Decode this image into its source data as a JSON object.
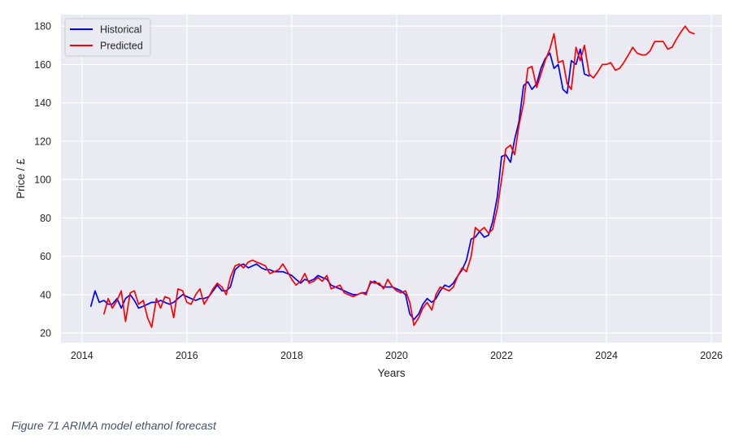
{
  "caption": "Figure 71 ARIMA model ethanol forecast",
  "chart_data": {
    "type": "line",
    "title": "",
    "xlabel": "Years",
    "ylabel": "Price / £",
    "xlim": [
      2013.6,
      2026.2
    ],
    "ylim": [
      15,
      186
    ],
    "x_ticks": [
      2014,
      2016,
      2018,
      2020,
      2022,
      2024,
      2026
    ],
    "y_ticks": [
      20,
      40,
      60,
      80,
      100,
      120,
      140,
      160,
      180
    ],
    "grid": true,
    "legend_position": "top-left",
    "background_color": "#eaeaf2",
    "series": [
      {
        "name": "Historical",
        "color": "#0000ff",
        "points": [
          [
            2014.17,
            34
          ],
          [
            2014.25,
            42
          ],
          [
            2014.33,
            36
          ],
          [
            2014.42,
            37
          ],
          [
            2014.5,
            35
          ],
          [
            2014.58,
            35
          ],
          [
            2014.67,
            38
          ],
          [
            2014.75,
            33
          ],
          [
            2014.83,
            38
          ],
          [
            2014.92,
            40
          ],
          [
            2015.0,
            37
          ],
          [
            2015.08,
            33
          ],
          [
            2015.17,
            34
          ],
          [
            2015.25,
            35
          ],
          [
            2015.33,
            36
          ],
          [
            2015.42,
            36
          ],
          [
            2015.5,
            37
          ],
          [
            2015.58,
            36
          ],
          [
            2015.67,
            35
          ],
          [
            2015.75,
            36
          ],
          [
            2015.83,
            38
          ],
          [
            2015.92,
            40
          ],
          [
            2016.0,
            39
          ],
          [
            2016.08,
            38
          ],
          [
            2016.17,
            37
          ],
          [
            2016.25,
            38
          ],
          [
            2016.33,
            38
          ],
          [
            2016.42,
            39
          ],
          [
            2016.5,
            42
          ],
          [
            2016.58,
            45
          ],
          [
            2016.67,
            42
          ],
          [
            2016.75,
            42
          ],
          [
            2016.83,
            44
          ],
          [
            2016.92,
            53
          ],
          [
            2017.0,
            55
          ],
          [
            2017.08,
            56
          ],
          [
            2017.17,
            54
          ],
          [
            2017.25,
            55
          ],
          [
            2017.33,
            56
          ],
          [
            2017.42,
            54
          ],
          [
            2017.5,
            53
          ],
          [
            2017.58,
            53
          ],
          [
            2017.67,
            52
          ],
          [
            2017.75,
            52
          ],
          [
            2017.83,
            52
          ],
          [
            2017.92,
            51
          ],
          [
            2018.0,
            50
          ],
          [
            2018.08,
            48
          ],
          [
            2018.17,
            46
          ],
          [
            2018.25,
            48
          ],
          [
            2018.33,
            47
          ],
          [
            2018.42,
            48
          ],
          [
            2018.5,
            50
          ],
          [
            2018.58,
            49
          ],
          [
            2018.67,
            48
          ],
          [
            2018.75,
            45
          ],
          [
            2018.83,
            44
          ],
          [
            2018.92,
            43
          ],
          [
            2019.0,
            42
          ],
          [
            2019.08,
            41
          ],
          [
            2019.17,
            40
          ],
          [
            2019.25,
            40
          ],
          [
            2019.33,
            41
          ],
          [
            2019.42,
            41
          ],
          [
            2019.5,
            46
          ],
          [
            2019.58,
            47
          ],
          [
            2019.67,
            45
          ],
          [
            2019.75,
            44
          ],
          [
            2019.83,
            44
          ],
          [
            2019.92,
            44
          ],
          [
            2020.0,
            43
          ],
          [
            2020.08,
            42
          ],
          [
            2020.17,
            40
          ],
          [
            2020.25,
            30
          ],
          [
            2020.33,
            27
          ],
          [
            2020.42,
            30
          ],
          [
            2020.5,
            35
          ],
          [
            2020.58,
            38
          ],
          [
            2020.67,
            36
          ],
          [
            2020.75,
            38
          ],
          [
            2020.83,
            42
          ],
          [
            2020.92,
            45
          ],
          [
            2021.0,
            44
          ],
          [
            2021.08,
            46
          ],
          [
            2021.17,
            50
          ],
          [
            2021.25,
            53
          ],
          [
            2021.33,
            58
          ],
          [
            2021.42,
            69
          ],
          [
            2021.5,
            70
          ],
          [
            2021.58,
            73
          ],
          [
            2021.67,
            70
          ],
          [
            2021.75,
            71
          ],
          [
            2021.83,
            78
          ],
          [
            2021.92,
            91
          ],
          [
            2022.0,
            112
          ],
          [
            2022.08,
            113
          ],
          [
            2022.17,
            109
          ],
          [
            2022.25,
            121
          ],
          [
            2022.33,
            130
          ],
          [
            2022.42,
            149
          ],
          [
            2022.5,
            151
          ],
          [
            2022.58,
            147
          ],
          [
            2022.67,
            150
          ],
          [
            2022.75,
            158
          ],
          [
            2022.83,
            163
          ],
          [
            2022.92,
            166
          ],
          [
            2023.0,
            158
          ],
          [
            2023.08,
            160
          ],
          [
            2023.17,
            147
          ],
          [
            2023.25,
            145
          ],
          [
            2023.33,
            162
          ],
          [
            2023.42,
            160
          ],
          [
            2023.5,
            168
          ],
          [
            2023.58,
            155
          ],
          [
            2023.67,
            154
          ]
        ]
      },
      {
        "name": "Predicted",
        "color": "#ff0000",
        "points": [
          [
            2014.42,
            30
          ],
          [
            2014.5,
            38
          ],
          [
            2014.58,
            33
          ],
          [
            2014.67,
            37
          ],
          [
            2014.75,
            42
          ],
          [
            2014.83,
            26
          ],
          [
            2014.92,
            41
          ],
          [
            2015.0,
            42
          ],
          [
            2015.08,
            35
          ],
          [
            2015.17,
            37
          ],
          [
            2015.25,
            28
          ],
          [
            2015.33,
            23
          ],
          [
            2015.42,
            38
          ],
          [
            2015.5,
            33
          ],
          [
            2015.58,
            39
          ],
          [
            2015.67,
            38
          ],
          [
            2015.75,
            28
          ],
          [
            2015.83,
            43
          ],
          [
            2015.92,
            42
          ],
          [
            2016.0,
            36
          ],
          [
            2016.08,
            35
          ],
          [
            2016.17,
            40
          ],
          [
            2016.25,
            43
          ],
          [
            2016.33,
            35
          ],
          [
            2016.42,
            39
          ],
          [
            2016.5,
            43
          ],
          [
            2016.58,
            46
          ],
          [
            2016.67,
            44
          ],
          [
            2016.75,
            40
          ],
          [
            2016.83,
            49
          ],
          [
            2016.92,
            55
          ],
          [
            2017.0,
            56
          ],
          [
            2017.08,
            54
          ],
          [
            2017.17,
            57
          ],
          [
            2017.25,
            58
          ],
          [
            2017.33,
            57
          ],
          [
            2017.42,
            56
          ],
          [
            2017.5,
            55
          ],
          [
            2017.58,
            51
          ],
          [
            2017.67,
            52
          ],
          [
            2017.75,
            53
          ],
          [
            2017.83,
            56
          ],
          [
            2017.92,
            52
          ],
          [
            2018.0,
            48
          ],
          [
            2018.08,
            45
          ],
          [
            2018.17,
            47
          ],
          [
            2018.25,
            51
          ],
          [
            2018.33,
            46
          ],
          [
            2018.42,
            47
          ],
          [
            2018.5,
            49
          ],
          [
            2018.58,
            47
          ],
          [
            2018.67,
            50
          ],
          [
            2018.75,
            43
          ],
          [
            2018.83,
            44
          ],
          [
            2018.92,
            45
          ],
          [
            2019.0,
            41
          ],
          [
            2019.08,
            40
          ],
          [
            2019.17,
            39
          ],
          [
            2019.25,
            40
          ],
          [
            2019.33,
            41
          ],
          [
            2019.42,
            40
          ],
          [
            2019.5,
            47
          ],
          [
            2019.58,
            46
          ],
          [
            2019.67,
            46
          ],
          [
            2019.75,
            43
          ],
          [
            2019.83,
            48
          ],
          [
            2019.92,
            44
          ],
          [
            2020.0,
            42
          ],
          [
            2020.08,
            41
          ],
          [
            2020.17,
            42
          ],
          [
            2020.25,
            36
          ],
          [
            2020.33,
            24
          ],
          [
            2020.42,
            28
          ],
          [
            2020.5,
            33
          ],
          [
            2020.58,
            36
          ],
          [
            2020.67,
            32
          ],
          [
            2020.75,
            40
          ],
          [
            2020.83,
            44
          ],
          [
            2020.92,
            43
          ],
          [
            2021.0,
            42
          ],
          [
            2021.08,
            44
          ],
          [
            2021.17,
            50
          ],
          [
            2021.25,
            54
          ],
          [
            2021.33,
            52
          ],
          [
            2021.42,
            60
          ],
          [
            2021.5,
            75
          ],
          [
            2021.58,
            73
          ],
          [
            2021.67,
            75
          ],
          [
            2021.75,
            72
          ],
          [
            2021.83,
            74
          ],
          [
            2021.92,
            85
          ],
          [
            2022.0,
            100
          ],
          [
            2022.08,
            116
          ],
          [
            2022.17,
            118
          ],
          [
            2022.25,
            113
          ],
          [
            2022.33,
            128
          ],
          [
            2022.42,
            140
          ],
          [
            2022.5,
            158
          ],
          [
            2022.58,
            159
          ],
          [
            2022.67,
            148
          ],
          [
            2022.75,
            155
          ],
          [
            2022.83,
            162
          ],
          [
            2022.92,
            168
          ],
          [
            2023.0,
            176
          ],
          [
            2023.08,
            161
          ],
          [
            2023.17,
            162
          ],
          [
            2023.25,
            150
          ],
          [
            2023.33,
            147
          ],
          [
            2023.42,
            169
          ],
          [
            2023.5,
            162
          ],
          [
            2023.58,
            170
          ],
          [
            2023.67,
            155
          ],
          [
            2023.75,
            153
          ],
          [
            2023.83,
            156
          ],
          [
            2023.92,
            160
          ],
          [
            2024.0,
            160
          ],
          [
            2024.08,
            161
          ],
          [
            2024.17,
            157
          ],
          [
            2024.25,
            158
          ],
          [
            2024.33,
            161
          ],
          [
            2024.42,
            165
          ],
          [
            2024.5,
            169
          ],
          [
            2024.58,
            166
          ],
          [
            2024.67,
            165
          ],
          [
            2024.75,
            165
          ],
          [
            2024.83,
            167
          ],
          [
            2024.92,
            172
          ],
          [
            2025.0,
            172
          ],
          [
            2025.08,
            172
          ],
          [
            2025.17,
            168
          ],
          [
            2025.25,
            169
          ],
          [
            2025.33,
            173
          ],
          [
            2025.42,
            177
          ],
          [
            2025.5,
            180
          ],
          [
            2025.58,
            177
          ],
          [
            2025.67,
            176
          ]
        ]
      }
    ]
  }
}
